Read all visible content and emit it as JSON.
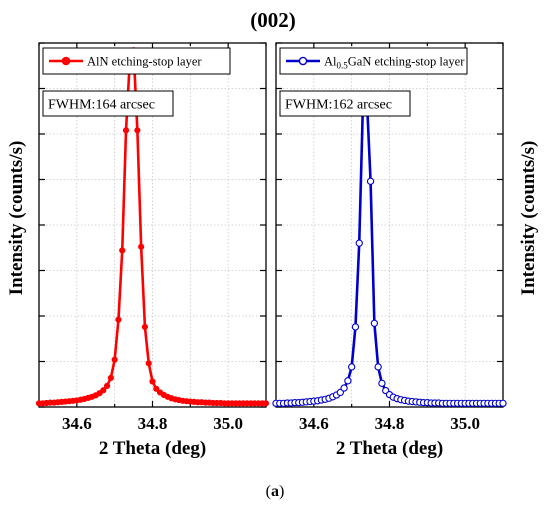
{
  "figure": {
    "title": "(002)",
    "ylabel": "Intensity (counts/s)",
    "caption_open": "(",
    "caption_letter": "a",
    "caption_close": ")"
  },
  "chart_data": [
    {
      "type": "line",
      "title": "",
      "xlabel": "2 Theta (deg)",
      "ylabel": "Intensity (counts/s)",
      "xlim": [
        34.5,
        35.1
      ],
      "ylim": [
        0,
        1.0
      ],
      "x_ticks": [
        "34.6",
        "34.8",
        "35.0"
      ],
      "grid": true,
      "y_tick_labels": false,
      "legend_position": "top-left",
      "annotation": "FWHM:164 arcsec",
      "series": [
        {
          "name": "AlN etching-stop layer",
          "name_parts": [
            "AlN etching-stop layer"
          ],
          "color": "#ff0000",
          "marker": "filled-circle",
          "x": [
            34.5,
            34.51,
            34.52,
            34.53,
            34.54,
            34.55,
            34.56,
            34.57,
            34.58,
            34.59,
            34.6,
            34.61,
            34.62,
            34.63,
            34.64,
            34.65,
            34.66,
            34.67,
            34.68,
            34.69,
            34.7,
            34.71,
            34.72,
            34.73,
            34.74,
            34.75,
            34.76,
            34.77,
            34.78,
            34.79,
            34.8,
            34.81,
            34.82,
            34.83,
            34.84,
            34.85,
            34.86,
            34.87,
            34.88,
            34.89,
            34.9,
            34.91,
            34.92,
            34.93,
            34.94,
            34.95,
            34.96,
            34.97,
            34.98,
            34.99,
            35.0,
            35.01,
            35.02,
            35.03,
            35.04,
            35.05,
            35.06,
            35.07,
            35.08,
            35.09,
            35.1
          ],
          "y": [
            0.01,
            0.01,
            0.011,
            0.012,
            0.012,
            0.013,
            0.014,
            0.015,
            0.016,
            0.017,
            0.018,
            0.02,
            0.022,
            0.025,
            0.028,
            0.032,
            0.038,
            0.046,
            0.058,
            0.08,
            0.13,
            0.24,
            0.43,
            0.76,
            0.95,
            0.98,
            0.76,
            0.44,
            0.22,
            0.12,
            0.07,
            0.05,
            0.04,
            0.033,
            0.028,
            0.024,
            0.021,
            0.019,
            0.017,
            0.016,
            0.015,
            0.014,
            0.013,
            0.013,
            0.012,
            0.012,
            0.011,
            0.011,
            0.011,
            0.01,
            0.01,
            0.01,
            0.01,
            0.01,
            0.01,
            0.01,
            0.01,
            0.01,
            0.01,
            0.01,
            0.01
          ]
        }
      ]
    },
    {
      "type": "line",
      "title": "",
      "xlabel": "2 Theta (deg)",
      "ylabel": "",
      "xlim": [
        34.5,
        35.1
      ],
      "ylim": [
        0,
        1.0
      ],
      "x_ticks": [
        "34.6",
        "34.8",
        "35.0"
      ],
      "grid": true,
      "y_tick_labels": false,
      "legend_position": "top-left",
      "annotation": "FWHM:162 arcsec",
      "series": [
        {
          "name": "Al0.5GaN etching-stop layer",
          "name_parts": [
            "Al",
            "0.5",
            "GaN etching-stop layer"
          ],
          "color": "#0000cc",
          "marker": "open-circle",
          "x": [
            34.5,
            34.51,
            34.52,
            34.53,
            34.54,
            34.55,
            34.56,
            34.57,
            34.58,
            34.59,
            34.6,
            34.61,
            34.62,
            34.63,
            34.64,
            34.65,
            34.66,
            34.67,
            34.68,
            34.69,
            34.7,
            34.71,
            34.72,
            34.73,
            34.74,
            34.75,
            34.76,
            34.77,
            34.78,
            34.79,
            34.8,
            34.81,
            34.82,
            34.83,
            34.84,
            34.85,
            34.86,
            34.87,
            34.88,
            34.89,
            34.9,
            34.91,
            34.92,
            34.93,
            34.94,
            34.95,
            34.96,
            34.97,
            34.98,
            34.99,
            35.0,
            35.01,
            35.02,
            35.03,
            35.04,
            35.05,
            35.06,
            35.07,
            35.08,
            35.09,
            35.1
          ],
          "y": [
            0.01,
            0.01,
            0.01,
            0.011,
            0.011,
            0.012,
            0.012,
            0.013,
            0.014,
            0.015,
            0.016,
            0.017,
            0.019,
            0.021,
            0.024,
            0.028,
            0.033,
            0.04,
            0.052,
            0.072,
            0.11,
            0.22,
            0.45,
            0.84,
            0.85,
            0.62,
            0.23,
            0.11,
            0.065,
            0.045,
            0.034,
            0.027,
            0.023,
            0.02,
            0.018,
            0.016,
            0.015,
            0.014,
            0.013,
            0.012,
            0.012,
            0.011,
            0.011,
            0.011,
            0.01,
            0.01,
            0.01,
            0.01,
            0.01,
            0.01,
            0.01,
            0.01,
            0.01,
            0.01,
            0.01,
            0.01,
            0.01,
            0.01,
            0.01,
            0.01,
            0.01
          ]
        }
      ]
    }
  ]
}
